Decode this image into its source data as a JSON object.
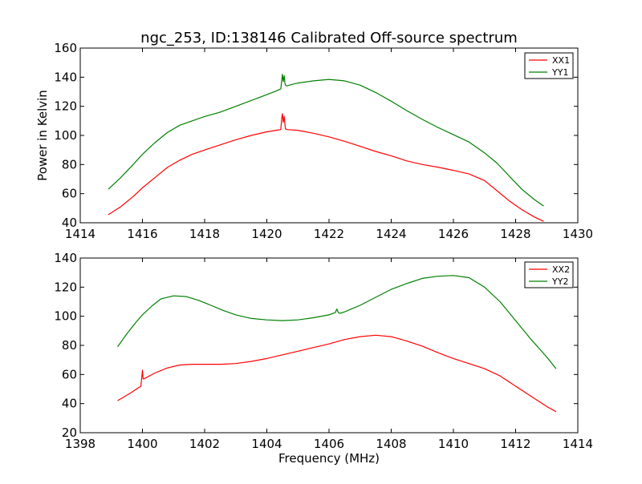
{
  "figure": {
    "title": "ngc_253, ID:138146 Calibrated Off-source spectrum"
  },
  "chart_data": [
    {
      "type": "line",
      "title": "ngc_253, ID:138146 Calibrated Off-source spectrum",
      "xlabel": "",
      "ylabel": "Power in Kelvin",
      "xlim": [
        1414,
        1430
      ],
      "ylim": [
        40,
        160
      ],
      "xticks": [
        1414,
        1416,
        1418,
        1420,
        1422,
        1424,
        1426,
        1428,
        1430
      ],
      "yticks": [
        40,
        60,
        80,
        100,
        120,
        140,
        160
      ],
      "grid": false,
      "legend": "top-right",
      "series": [
        {
          "name": "XX1",
          "color": "#ff0000",
          "x": [
            1414.9,
            1415.3,
            1415.7,
            1416.0,
            1416.4,
            1416.8,
            1417.2,
            1417.6,
            1418.0,
            1418.5,
            1419.0,
            1419.5,
            1420.0,
            1420.3,
            1420.45,
            1420.48,
            1420.5,
            1420.53,
            1420.56,
            1420.58,
            1420.6,
            1420.65,
            1421.0,
            1421.5,
            1422.0,
            1422.5,
            1423.0,
            1423.5,
            1424.0,
            1424.5,
            1425.0,
            1425.5,
            1426.0,
            1426.5,
            1427.0,
            1427.4,
            1427.8,
            1428.2,
            1428.6,
            1428.9
          ],
          "y": [
            45.5,
            51,
            58,
            64,
            71,
            78,
            83,
            87,
            90,
            93.5,
            97,
            100,
            102.5,
            103.5,
            104,
            112,
            115,
            109,
            113,
            108,
            104.5,
            104,
            103.5,
            101.5,
            99,
            96,
            92.5,
            89,
            86,
            82.5,
            80,
            78.2,
            76,
            73.5,
            69,
            62,
            55,
            49,
            44,
            41
          ]
        },
        {
          "name": "YY1",
          "color": "#008000",
          "x": [
            1414.9,
            1415.3,
            1415.7,
            1416.0,
            1416.4,
            1416.8,
            1417.2,
            1417.6,
            1418.0,
            1418.5,
            1419.0,
            1419.5,
            1420.0,
            1420.3,
            1420.45,
            1420.48,
            1420.5,
            1420.53,
            1420.56,
            1420.58,
            1420.6,
            1420.65,
            1420.8,
            1421.0,
            1421.5,
            1422.0,
            1422.5,
            1423.0,
            1423.5,
            1424.0,
            1424.5,
            1425.0,
            1425.5,
            1426.0,
            1426.5,
            1427.0,
            1427.4,
            1427.8,
            1428.2,
            1428.6,
            1428.9
          ],
          "y": [
            63,
            71,
            80,
            87,
            95,
            102,
            107,
            110,
            113,
            116,
            120,
            124,
            128,
            130.5,
            132,
            138,
            142,
            137,
            141,
            136,
            134.5,
            134,
            135,
            136,
            137.5,
            138.5,
            137.5,
            134.5,
            129.5,
            123.5,
            117,
            111,
            105.5,
            100.5,
            95.5,
            88,
            81,
            72,
            63,
            56,
            51.5
          ]
        }
      ]
    },
    {
      "type": "line",
      "title": "",
      "xlabel": "Frequency (MHz)",
      "ylabel": "",
      "xlim": [
        1398,
        1414
      ],
      "ylim": [
        20,
        140
      ],
      "xticks": [
        1398,
        1400,
        1402,
        1404,
        1406,
        1408,
        1410,
        1412,
        1414
      ],
      "yticks": [
        20,
        40,
        60,
        80,
        100,
        120,
        140
      ],
      "grid": false,
      "legend": "top-right",
      "series": [
        {
          "name": "XX2",
          "color": "#ff0000",
          "x": [
            1399.2,
            1399.6,
            1399.95,
            1400.0,
            1400.02,
            1400.05,
            1400.4,
            1400.8,
            1401.2,
            1401.6,
            1402.0,
            1402.5,
            1403.0,
            1403.5,
            1404.0,
            1404.5,
            1405.0,
            1405.5,
            1406.0,
            1406.5,
            1407.0,
            1407.5,
            1408.0,
            1408.5,
            1409.0,
            1409.5,
            1410.0,
            1410.5,
            1411.0,
            1411.5,
            1412.0,
            1412.5,
            1413.0,
            1413.3
          ],
          "y": [
            42,
            47,
            52,
            63,
            57,
            57,
            61,
            64.5,
            66.5,
            67,
            67,
            67,
            67.5,
            69,
            71,
            73.5,
            76,
            78.5,
            81,
            84,
            86,
            87,
            86,
            83,
            79.5,
            75,
            71,
            67.5,
            64,
            59,
            52,
            45,
            38,
            34.5
          ]
        },
        {
          "name": "YY2",
          "color": "#008000",
          "x": [
            1399.2,
            1399.5,
            1399.8,
            1400.0,
            1400.3,
            1400.6,
            1401.0,
            1401.4,
            1401.8,
            1402.2,
            1402.6,
            1403.0,
            1403.5,
            1404.0,
            1404.5,
            1405.0,
            1405.5,
            1406.0,
            1406.2,
            1406.25,
            1406.3,
            1406.35,
            1406.5,
            1407.0,
            1407.5,
            1408.0,
            1408.5,
            1409.0,
            1409.5,
            1410.0,
            1410.5,
            1411.0,
            1411.5,
            1412.0,
            1412.5,
            1413.0,
            1413.3
          ],
          "y": [
            79,
            88,
            96,
            101,
            107,
            112,
            114,
            113.5,
            111,
            107.5,
            104,
            101,
            98.5,
            97.5,
            97,
            97.5,
            99,
            101,
            102.5,
            105,
            102.5,
            102,
            103,
            107.5,
            113,
            118.5,
            122.5,
            126,
            127.5,
            128,
            126.5,
            120,
            110,
            97,
            84,
            72,
            64
          ]
        }
      ]
    }
  ]
}
